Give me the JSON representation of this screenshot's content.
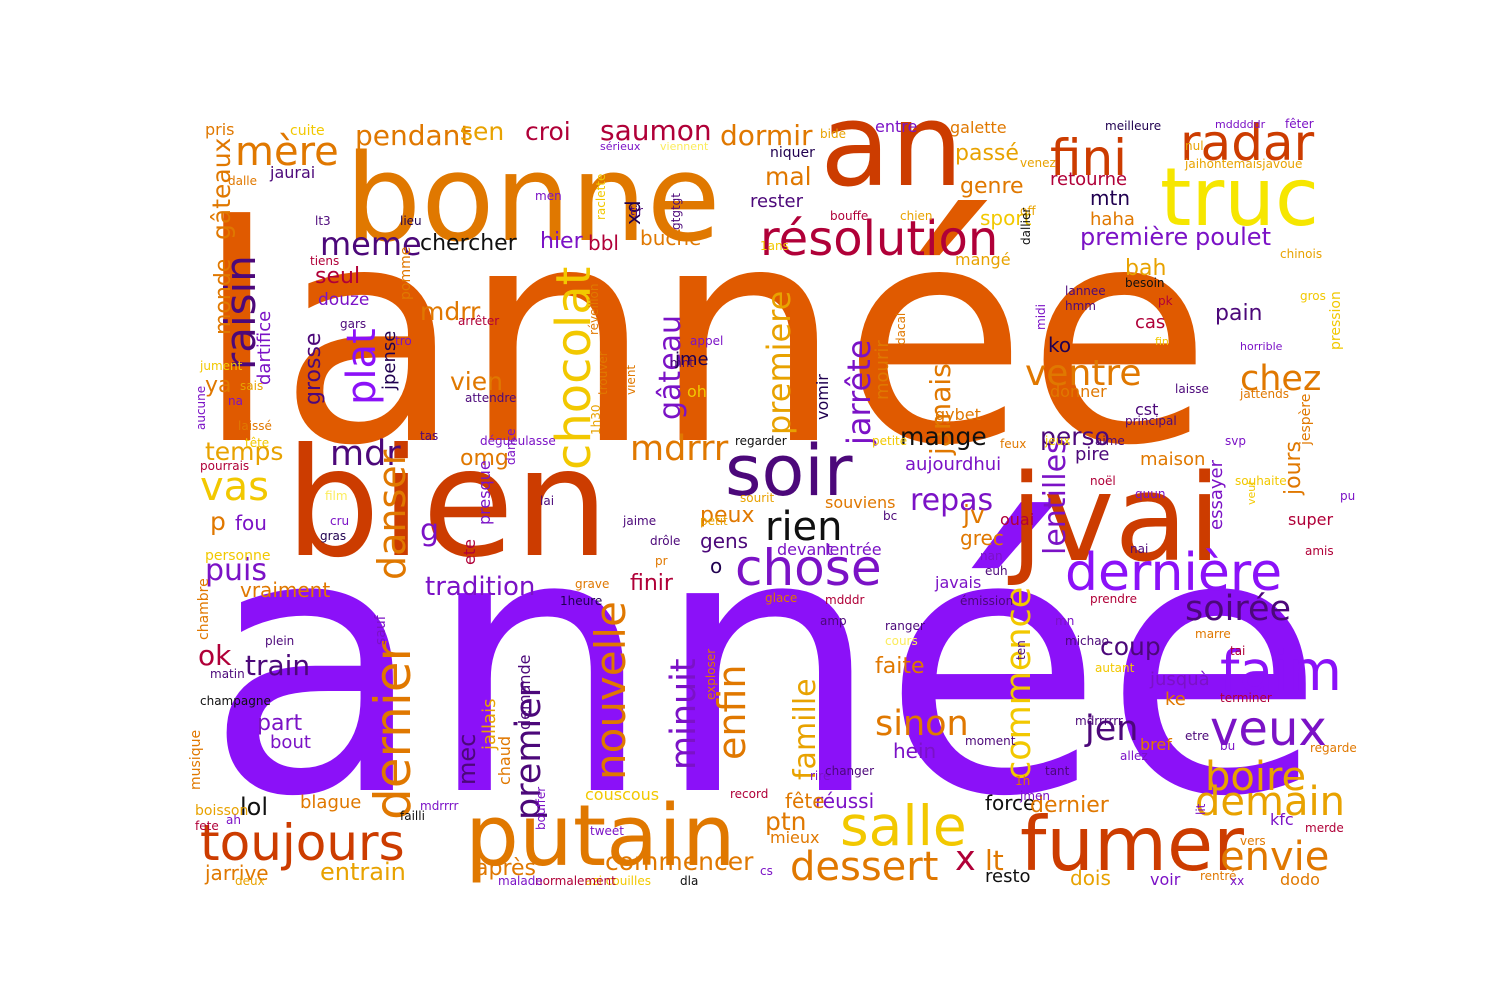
{
  "palette": {
    "purple": "#8b11f8",
    "violet": "#7b12c6",
    "deep_purple": "#4c087a",
    "navy": "#200050",
    "crimson": "#b00038",
    "red_orange": "#cc3c00",
    "dark_orange": "#e05a00",
    "orange": "#e07800",
    "amber": "#e8a200",
    "gold": "#f2c800",
    "yellow": "#f6e600",
    "pale_yellow": "#fbec5c",
    "black": "#101010"
  },
  "words": [
    {
      "text": "année",
      "color": "purple"
    },
    {
      "text": "lannée",
      "color": "dark_orange"
    },
    {
      "text": "bien",
      "color": "red_orange"
    },
    {
      "text": "bonne",
      "color": "orange"
    },
    {
      "text": "an",
      "color": "red_orange"
    },
    {
      "text": "jvai",
      "color": "red_orange"
    },
    {
      "text": "putain",
      "color": "orange"
    },
    {
      "text": "truc",
      "color": "yellow"
    },
    {
      "text": "soir",
      "color": "deep_purple"
    },
    {
      "text": "fumer",
      "color": "red_orange"
    },
    {
      "text": "résolution",
      "color": "crimson"
    },
    {
      "text": "radar",
      "color": "red_orange"
    },
    {
      "text": "fini",
      "color": "red_orange"
    },
    {
      "text": "chose",
      "color": "violet"
    },
    {
      "text": "dernière",
      "color": "purple"
    },
    {
      "text": "rien",
      "color": "black"
    },
    {
      "text": "salle",
      "color": "gold"
    },
    {
      "text": "toujours",
      "color": "red_orange"
    },
    {
      "text": "dernier",
      "color": "orange"
    },
    {
      "text": "chocolat",
      "color": "gold"
    },
    {
      "text": "faim",
      "color": "purple"
    },
    {
      "text": "veux",
      "color": "violet"
    },
    {
      "text": "boire",
      "color": "amber"
    },
    {
      "text": "demain",
      "color": "amber"
    },
    {
      "text": "envie",
      "color": "orange"
    },
    {
      "text": "dessert",
      "color": "orange"
    },
    {
      "text": "mère",
      "color": "orange"
    },
    {
      "text": "raisin",
      "color": "deep_purple"
    },
    {
      "text": "meme",
      "color": "deep_purple"
    },
    {
      "text": "plat",
      "color": "purple"
    },
    {
      "text": "mdr",
      "color": "deep_purple"
    },
    {
      "text": "vas",
      "color": "gold"
    },
    {
      "text": "nouvelle",
      "color": "orange"
    },
    {
      "text": "premier",
      "color": "deep_purple"
    },
    {
      "text": "minuit",
      "color": "violet"
    },
    {
      "text": "enfin",
      "color": "orange"
    },
    {
      "text": "famille",
      "color": "amber"
    },
    {
      "text": "premiere",
      "color": "amber"
    },
    {
      "text": "jarrête",
      "color": "violet"
    },
    {
      "text": "jamais",
      "color": "orange"
    },
    {
      "text": "ventre",
      "color": "orange"
    },
    {
      "text": "chez",
      "color": "orange"
    },
    {
      "text": "soirée",
      "color": "deep_purple"
    },
    {
      "text": "sinon",
      "color": "orange"
    },
    {
      "text": "jen",
      "color": "deep_purple"
    },
    {
      "text": "commence",
      "color": "gold"
    },
    {
      "text": "lentilles",
      "color": "violet"
    },
    {
      "text": "gâteau",
      "color": "violet"
    },
    {
      "text": "mdrrr",
      "color": "orange"
    },
    {
      "text": "saumon",
      "color": "crimson"
    },
    {
      "text": "dormir",
      "color": "orange"
    },
    {
      "text": "pendant",
      "color": "orange"
    },
    {
      "text": "croi",
      "color": "crimson"
    },
    {
      "text": "sen",
      "color": "amber"
    },
    {
      "text": "mal",
      "color": "orange"
    },
    {
      "text": "passé",
      "color": "amber"
    },
    {
      "text": "genre",
      "color": "orange"
    },
    {
      "text": "sport",
      "color": "gold"
    },
    {
      "text": "mtn",
      "color": "navy"
    },
    {
      "text": "haha",
      "color": "orange"
    },
    {
      "text": "retourne",
      "color": "crimson"
    },
    {
      "text": "première",
      "color": "violet"
    },
    {
      "text": "poulet",
      "color": "violet"
    },
    {
      "text": "bah",
      "color": "amber"
    },
    {
      "text": "pain",
      "color": "deep_purple"
    },
    {
      "text": "ko",
      "color": "navy"
    },
    {
      "text": "cas",
      "color": "crimson"
    },
    {
      "text": "chercher",
      "color": "black"
    },
    {
      "text": "hier",
      "color": "violet"
    },
    {
      "text": "bbl",
      "color": "crimson"
    },
    {
      "text": "buche",
      "color": "orange"
    },
    {
      "text": "xd",
      "color": "navy"
    },
    {
      "text": "seul",
      "color": "crimson"
    },
    {
      "text": "douze",
      "color": "violet"
    },
    {
      "text": "grosse",
      "color": "deep_purple"
    },
    {
      "text": "jpense",
      "color": "navy"
    },
    {
      "text": "monde",
      "color": "orange"
    },
    {
      "text": "gâteaux",
      "color": "orange"
    },
    {
      "text": "dartifice",
      "color": "violet"
    },
    {
      "text": "ya",
      "color": "orange"
    },
    {
      "text": "temps",
      "color": "amber"
    },
    {
      "text": "mange",
      "color": "black"
    },
    {
      "text": "repas",
      "color": "violet"
    },
    {
      "text": "aujourdhui",
      "color": "violet"
    },
    {
      "text": "omg",
      "color": "orange"
    },
    {
      "text": "vien",
      "color": "orange"
    },
    {
      "text": "jme",
      "color": "navy"
    },
    {
      "text": "oh",
      "color": "gold"
    },
    {
      "text": "mdrr",
      "color": "orange"
    },
    {
      "text": "p",
      "color": "orange"
    },
    {
      "text": "fou",
      "color": "violet"
    },
    {
      "text": "puis",
      "color": "violet"
    },
    {
      "text": "danser",
      "color": "orange"
    },
    {
      "text": "g",
      "color": "violet"
    },
    {
      "text": "tradition",
      "color": "violet"
    },
    {
      "text": "vraiment",
      "color": "orange"
    },
    {
      "text": "finir",
      "color": "crimson"
    },
    {
      "text": "peux",
      "color": "orange"
    },
    {
      "text": "gens",
      "color": "deep_purple"
    },
    {
      "text": "o",
      "color": "navy"
    },
    {
      "text": "jv",
      "color": "orange"
    },
    {
      "text": "grec",
      "color": "orange"
    },
    {
      "text": "javais",
      "color": "violet"
    },
    {
      "text": "perso",
      "color": "deep_purple"
    },
    {
      "text": "maison",
      "color": "orange"
    },
    {
      "text": "pire",
      "color": "deep_purple"
    },
    {
      "text": "jours",
      "color": "orange"
    },
    {
      "text": "essayer",
      "color": "violet"
    },
    {
      "text": "super",
      "color": "crimson"
    },
    {
      "text": "cst",
      "color": "deep_purple"
    },
    {
      "text": "ok",
      "color": "crimson"
    },
    {
      "text": "train",
      "color": "deep_purple"
    },
    {
      "text": "part",
      "color": "violet"
    },
    {
      "text": "bout",
      "color": "violet"
    },
    {
      "text": "lol",
      "color": "black"
    },
    {
      "text": "blague",
      "color": "orange"
    },
    {
      "text": "mec",
      "color": "deep_purple"
    },
    {
      "text": "jallais",
      "color": "amber"
    },
    {
      "text": "chaud",
      "color": "orange"
    },
    {
      "text": "demande",
      "color": "deep_purple"
    },
    {
      "text": "entrain",
      "color": "amber"
    },
    {
      "text": "après",
      "color": "orange"
    },
    {
      "text": "commencer",
      "color": "orange"
    },
    {
      "text": "jarrive",
      "color": "orange"
    },
    {
      "text": "ptn",
      "color": "orange"
    },
    {
      "text": "mieux",
      "color": "orange"
    },
    {
      "text": "réussi",
      "color": "violet"
    },
    {
      "text": "force",
      "color": "black"
    },
    {
      "text": "dernier",
      "color": "orange"
    },
    {
      "text": "faite",
      "color": "orange"
    },
    {
      "text": "hein",
      "color": "violet"
    },
    {
      "text": "coup",
      "color": "deep_purple"
    },
    {
      "text": "jusquà",
      "color": "violet"
    },
    {
      "text": "ke",
      "color": "orange"
    },
    {
      "text": "bref",
      "color": "orange"
    },
    {
      "text": "x",
      "color": "crimson"
    },
    {
      "text": "lt",
      "color": "orange"
    },
    {
      "text": "resto",
      "color": "black"
    },
    {
      "text": "dois",
      "color": "amber"
    },
    {
      "text": "voir",
      "color": "violet"
    },
    {
      "text": "dodo",
      "color": "orange"
    },
    {
      "text": "fête",
      "color": "orange"
    },
    {
      "text": "rester",
      "color": "deep_purple"
    },
    {
      "text": "niquer",
      "color": "navy"
    },
    {
      "text": "entre",
      "color": "violet"
    },
    {
      "text": "galette",
      "color": "orange"
    },
    {
      "text": "bouffe",
      "color": "crimson"
    },
    {
      "text": "chien",
      "color": "amber"
    },
    {
      "text": "meilleure",
      "color": "navy"
    },
    {
      "text": "mdddddr",
      "color": "violet"
    },
    {
      "text": "fêter",
      "color": "violet"
    },
    {
      "text": "nul",
      "color": "amber"
    },
    {
      "text": "jaihontemaisjavoue",
      "color": "amber"
    },
    {
      "text": "venez",
      "color": "amber"
    },
    {
      "text": "off",
      "color": "amber"
    },
    {
      "text": "cuite",
      "color": "gold"
    },
    {
      "text": "pris",
      "color": "orange"
    },
    {
      "text": "jaurai",
      "color": "deep_purple"
    },
    {
      "text": "dalle",
      "color": "orange"
    },
    {
      "text": "lt3",
      "color": "deep_purple"
    },
    {
      "text": "lieu",
      "color": "navy"
    },
    {
      "text": "men",
      "color": "violet"
    },
    {
      "text": "raclette",
      "color": "gold"
    },
    {
      "text": "tjr",
      "color": "deep_purple"
    },
    {
      "text": "gtgtgt",
      "color": "deep_purple"
    },
    {
      "text": "sérieux",
      "color": "violet"
    },
    {
      "text": "viennent",
      "color": "pale_yellow"
    },
    {
      "text": "tiens",
      "color": "crimson"
    },
    {
      "text": "pomme",
      "color": "orange"
    },
    {
      "text": "1ans",
      "color": "gold"
    },
    {
      "text": "mangé",
      "color": "amber"
    },
    {
      "text": "besoin",
      "color": "black"
    },
    {
      "text": "lannee",
      "color": "deep_purple"
    },
    {
      "text": "hmm",
      "color": "deep_purple"
    },
    {
      "text": "midi",
      "color": "violet"
    },
    {
      "text": "chinois",
      "color": "amber"
    },
    {
      "text": "pression",
      "color": "gold"
    },
    {
      "text": "horrible",
      "color": "violet"
    },
    {
      "text": "gros",
      "color": "gold"
    },
    {
      "text": "fin",
      "color": "gold"
    },
    {
      "text": "jattends",
      "color": "orange"
    },
    {
      "text": "laisse",
      "color": "deep_purple"
    },
    {
      "text": "principal",
      "color": "deep_purple"
    },
    {
      "text": "jespère",
      "color": "orange"
    },
    {
      "text": "svp",
      "color": "violet"
    },
    {
      "text": "souhaite",
      "color": "gold"
    },
    {
      "text": "pu",
      "color": "violet"
    },
    {
      "text": "veut",
      "color": "gold"
    },
    {
      "text": "amis",
      "color": "crimson"
    },
    {
      "text": "pk",
      "color": "crimson"
    },
    {
      "text": "gybet",
      "color": "orange"
    },
    {
      "text": "donner",
      "color": "orange"
    },
    {
      "text": "dallier",
      "color": "black"
    },
    {
      "text": "dacal",
      "color": "orange"
    },
    {
      "text": "vomir",
      "color": "navy"
    },
    {
      "text": "mourir",
      "color": "orange"
    },
    {
      "text": "petite",
      "color": "gold"
    },
    {
      "text": "feux",
      "color": "orange"
    },
    {
      "text": "jeux",
      "color": "gold"
    },
    {
      "text": "aime",
      "color": "deep_purple"
    },
    {
      "text": "noël",
      "color": "crimson"
    },
    {
      "text": "quun",
      "color": "violet"
    },
    {
      "text": "nai",
      "color": "deep_purple"
    },
    {
      "text": "nan",
      "color": "violet"
    },
    {
      "text": "euh",
      "color": "deep_purple"
    },
    {
      "text": "prendre",
      "color": "crimson"
    },
    {
      "text": "souviens",
      "color": "orange"
    },
    {
      "text": "lentrée",
      "color": "violet"
    },
    {
      "text": "devant",
      "color": "violet"
    },
    {
      "text": "ouai",
      "color": "crimson"
    },
    {
      "text": "bc",
      "color": "deep_purple"
    },
    {
      "text": "regarder",
      "color": "black"
    },
    {
      "text": "dégueulasse",
      "color": "violet"
    },
    {
      "text": "dance",
      "color": "violet"
    },
    {
      "text": "1h30",
      "color": "amber"
    },
    {
      "text": "attendre",
      "color": "deep_purple"
    },
    {
      "text": "vient",
      "color": "orange"
    },
    {
      "text": "trouver",
      "color": "orange"
    },
    {
      "text": "réveillon",
      "color": "orange"
    },
    {
      "text": "arrêter",
      "color": "crimson"
    },
    {
      "text": "appel",
      "color": "violet"
    },
    {
      "text": "mnt",
      "color": "deep_purple"
    },
    {
      "text": "tro",
      "color": "violet"
    },
    {
      "text": "gars",
      "color": "deep_purple"
    },
    {
      "text": "jument",
      "color": "gold"
    },
    {
      "text": "sais",
      "color": "amber"
    },
    {
      "text": "aucune",
      "color": "violet"
    },
    {
      "text": "na",
      "color": "violet"
    },
    {
      "text": "laissé",
      "color": "orange"
    },
    {
      "text": "tête",
      "color": "gold"
    },
    {
      "text": "tas",
      "color": "deep_purple"
    },
    {
      "text": "pourrais",
      "color": "crimson"
    },
    {
      "text": "film",
      "color": "pale_yellow"
    },
    {
      "text": "cru",
      "color": "violet"
    },
    {
      "text": "gras",
      "color": "navy"
    },
    {
      "text": "personne",
      "color": "gold"
    },
    {
      "text": "lai",
      "color": "deep_purple"
    },
    {
      "text": "jaime",
      "color": "deep_purple"
    },
    {
      "text": "petit",
      "color": "amber"
    },
    {
      "text": "sourit",
      "color": "amber"
    },
    {
      "text": "drôle",
      "color": "deep_purple"
    },
    {
      "text": "pr",
      "color": "orange"
    },
    {
      "text": "ete",
      "color": "crimson"
    },
    {
      "text": "presque",
      "color": "violet"
    },
    {
      "text": "grave",
      "color": "orange"
    },
    {
      "text": "1heure",
      "color": "navy"
    },
    {
      "text": "glace",
      "color": "orange"
    },
    {
      "text": "mdddr",
      "color": "crimson"
    },
    {
      "text": "émission",
      "color": "deep_purple"
    },
    {
      "text": "amp",
      "color": "deep_purple"
    },
    {
      "text": "mn",
      "color": "violet"
    },
    {
      "text": "michao",
      "color": "deep_purple"
    },
    {
      "text": "ten",
      "color": "deep_purple"
    },
    {
      "text": "marre",
      "color": "orange"
    },
    {
      "text": "tai",
      "color": "crimson"
    },
    {
      "text": "autant",
      "color": "gold"
    },
    {
      "text": "terminer",
      "color": "crimson"
    },
    {
      "text": "mdrrrrrr",
      "color": "deep_purple"
    },
    {
      "text": "etre",
      "color": "deep_purple"
    },
    {
      "text": "bu",
      "color": "violet"
    },
    {
      "text": "regarde",
      "color": "orange"
    },
    {
      "text": "allez",
      "color": "violet"
    },
    {
      "text": "tant",
      "color": "deep_purple"
    },
    {
      "text": "1h",
      "color": "orange"
    },
    {
      "text": "jmen",
      "color": "violet"
    },
    {
      "text": "moment",
      "color": "deep_purple"
    },
    {
      "text": "cours",
      "color": "pale_yellow"
    },
    {
      "text": "rire",
      "color": "violet"
    },
    {
      "text": "changer",
      "color": "deep_purple"
    },
    {
      "text": "lit",
      "color": "violet"
    },
    {
      "text": "kfc",
      "color": "violet"
    },
    {
      "text": "merde",
      "color": "crimson"
    },
    {
      "text": "vers",
      "color": "orange"
    },
    {
      "text": "rentré",
      "color": "orange"
    },
    {
      "text": "xx",
      "color": "violet"
    },
    {
      "text": "record",
      "color": "crimson"
    },
    {
      "text": "couscous",
      "color": "gold"
    },
    {
      "text": "bouffer",
      "color": "violet"
    },
    {
      "text": "tweet",
      "color": "violet"
    },
    {
      "text": "cs",
      "color": "violet"
    },
    {
      "text": "dla",
      "color": "black"
    },
    {
      "text": "azi couilles",
      "color": "gold"
    },
    {
      "text": "normalement",
      "color": "crimson"
    },
    {
      "text": "malade",
      "color": "violet"
    },
    {
      "text": "deux",
      "color": "amber"
    },
    {
      "text": "boisson",
      "color": "amber"
    },
    {
      "text": "fete",
      "color": "crimson"
    },
    {
      "text": "mdrrrr",
      "color": "violet"
    },
    {
      "text": "failli",
      "color": "black"
    },
    {
      "text": "musique",
      "color": "orange"
    },
    {
      "text": "champagne",
      "color": "black"
    },
    {
      "text": "matin",
      "color": "deep_purple"
    },
    {
      "text": "plein",
      "color": "deep_purple"
    },
    {
      "text": "chambre",
      "color": "orange"
    },
    {
      "text": "sauf",
      "color": "violet"
    },
    {
      "text": "exploser",
      "color": "orange"
    },
    {
      "text": "ranger",
      "color": "deep_purple"
    },
    {
      "text": "bide",
      "color": "amber"
    },
    {
      "text": "ah",
      "color": "violet"
    }
  ]
}
